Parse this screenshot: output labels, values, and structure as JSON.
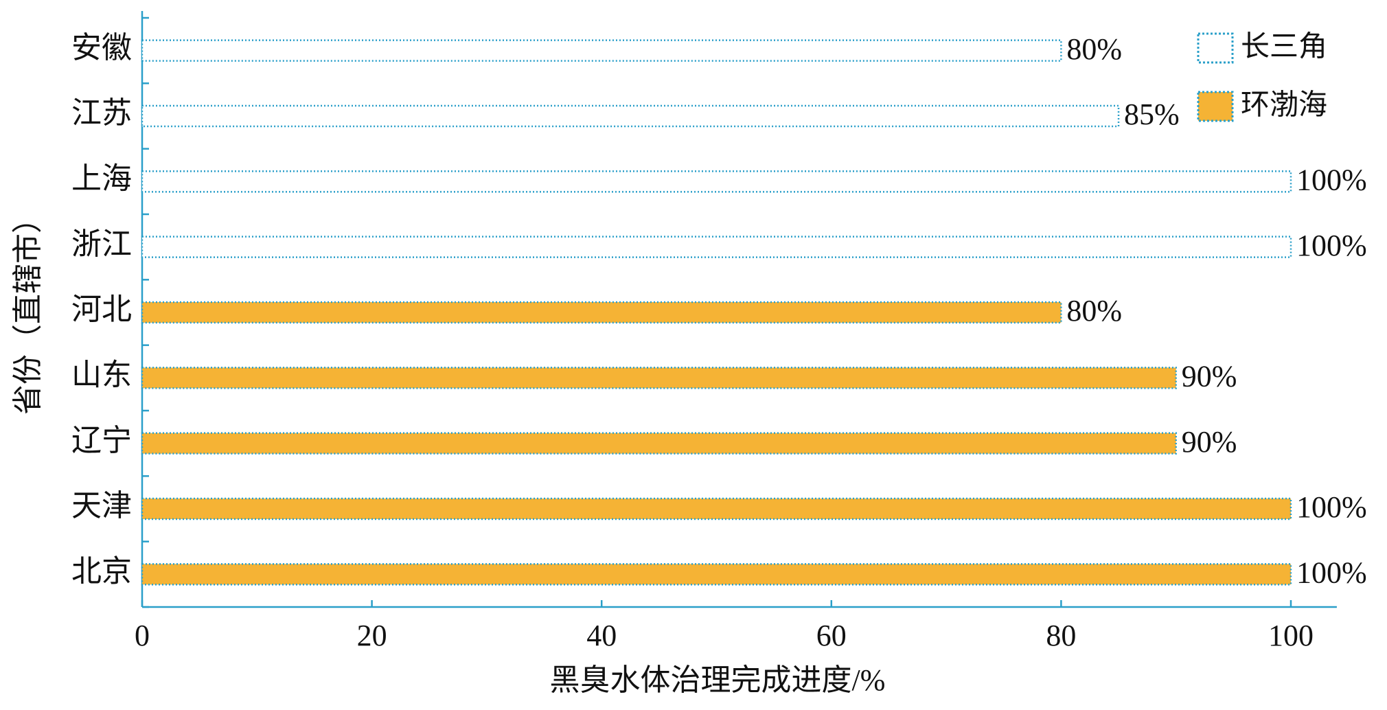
{
  "chart_data": {
    "type": "bar",
    "orientation": "horizontal",
    "x_label": "黑臭水体治理完成进度/%",
    "y_label": "省份（直辖市）",
    "categories": [
      "安徽",
      "江苏",
      "上海",
      "浙江",
      "河北",
      "山东",
      "辽宁",
      "天津",
      "北京"
    ],
    "series": [
      {
        "name": "长三角",
        "color": "#2a9fc9",
        "style": "outline",
        "values": [
          80,
          85,
          100,
          100,
          null,
          null,
          null,
          null,
          null
        ],
        "value_labels": [
          "80%",
          "85%",
          "100%",
          "100%",
          null,
          null,
          null,
          null,
          null
        ]
      },
      {
        "name": "环渤海",
        "color": "#f5b335",
        "style": "filled",
        "values": [
          null,
          null,
          null,
          null,
          80,
          90,
          90,
          100,
          100
        ],
        "value_labels": [
          null,
          null,
          null,
          null,
          "80%",
          "90%",
          "90%",
          "100%",
          "100%"
        ]
      }
    ],
    "xlim": [
      0,
      104
    ],
    "xticks": [
      0,
      20,
      40,
      60,
      80,
      100
    ],
    "legend": "upper right"
  }
}
